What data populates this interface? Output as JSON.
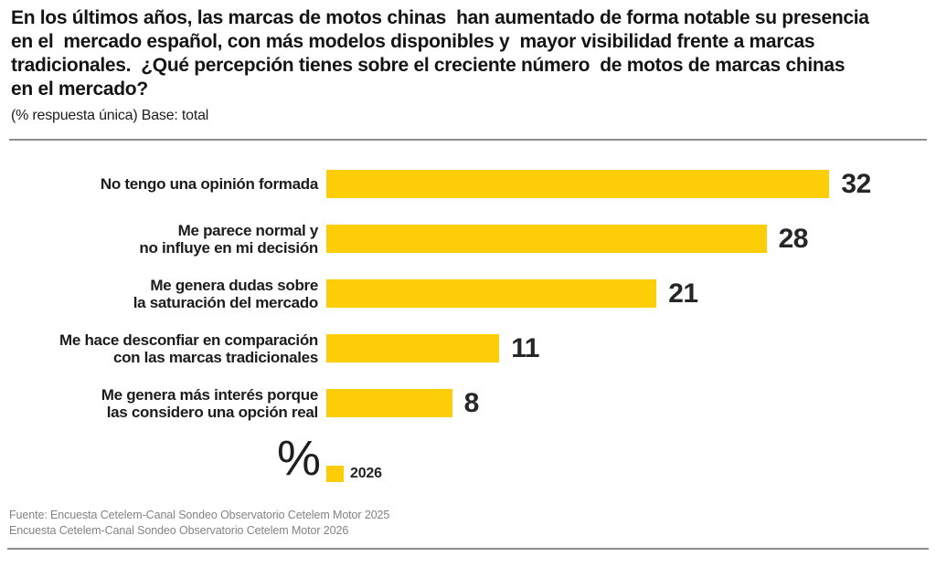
{
  "header": {
    "title_lines": [
      "En los últimos años, las marcas de motos chinas  han aumentado de forma notable su presencia",
      "en el  mercado español, con más modelos disponibles y  mayor visibilidad frente a marcas",
      "tradicionales.  ¿Qué percepción tienes sobre el creciente número  de motos de marcas chinas",
      "en el mercado?"
    ],
    "subtitle": "(% respuesta única) Base: total"
  },
  "chart_data": {
    "type": "bar",
    "orientation": "horizontal",
    "title": "¿Qué percepción tienes sobre el creciente número de motos de marcas chinas en el mercado?",
    "unit": "%",
    "base": "total",
    "categories": [
      "No tengo una opinión formada",
      "Me parece normal y\nno influye en mi decisión",
      "Me genera dudas sobre\nla saturación del mercado",
      "Me hace desconfiar en comparación\ncon las marcas tradicionales",
      "Me genera más interés porque\nlas considero una opción real"
    ],
    "series": [
      {
        "name": "2026",
        "color": "#FDCE08",
        "values": [
          32,
          28,
          21,
          11,
          8
        ]
      }
    ],
    "xlim": [
      0,
      32
    ],
    "value_labels": true,
    "grid": false,
    "legend_position": "bottom"
  },
  "legend": {
    "unit_symbol": "%",
    "items": [
      {
        "label": "2026",
        "color": "#FDCE08"
      }
    ]
  },
  "footer": {
    "source_lines": [
      "Fuente: Encuesta Cetelem-Canal Sondeo Observatorio Cetelem Motor 2025",
      "Encuesta Cetelem-Canal Sondeo Observatorio Cetelem Motor 2026"
    ]
  },
  "colors": {
    "bar_yellow": "#FDCE08",
    "divider_gray": "#8d8d8d",
    "text_dark": "#1c1c1c",
    "source_gray": "#838383"
  }
}
